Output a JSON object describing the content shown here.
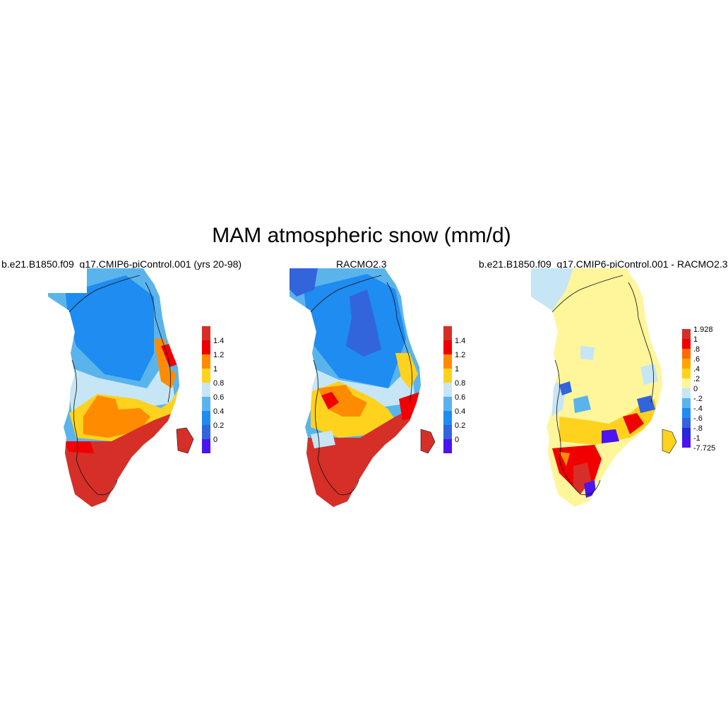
{
  "title": "MAM atmospheric snow (mm/d)",
  "panels": [
    {
      "title": "b.e21.B1850.f09_g17.CMIP6-piControl.001 (yrs 20-98)",
      "colorbar": {
        "labels": [
          "1.4",
          "1.2",
          "1",
          "0.8",
          "0.6",
          "0.4",
          "0.2",
          "0"
        ],
        "colors": [
          "#d62f27",
          "#f00000",
          "#ff8c00",
          "#ffd21e",
          "#c6e6f5",
          "#5ab4ec",
          "#1e8cf0",
          "#3264dc",
          "#4b14f0"
        ]
      }
    },
    {
      "title": "RACMO2.3",
      "colorbar": {
        "labels": [
          "1.4",
          "1.2",
          "1",
          "0.8",
          "0.6",
          "0.4",
          "0.2",
          "0"
        ],
        "colors": [
          "#d62f27",
          "#f00000",
          "#ff8c00",
          "#ffd21e",
          "#c6e6f5",
          "#5ab4ec",
          "#1e8cf0",
          "#3264dc",
          "#4b14f0"
        ]
      }
    },
    {
      "title": "b.e21.B1850.f09_g17.CMIP6-piControl.001 - RACMO2.3",
      "colorbar": {
        "labels": [
          "1.928",
          "1",
          ".8",
          ".6",
          ".4",
          ".2",
          "0",
          "-.2",
          "-.4",
          "-.6",
          "-.8",
          "-1",
          "-7.725"
        ],
        "colors": [
          "#d62f27",
          "#f00000",
          "#ff6a00",
          "#ffa500",
          "#ffd21e",
          "#fff59b",
          "#c6e6f5",
          "#5ab4ec",
          "#1e8cf0",
          "#3264dc",
          "#2828dc",
          "#4b14f0"
        ]
      }
    }
  ]
}
